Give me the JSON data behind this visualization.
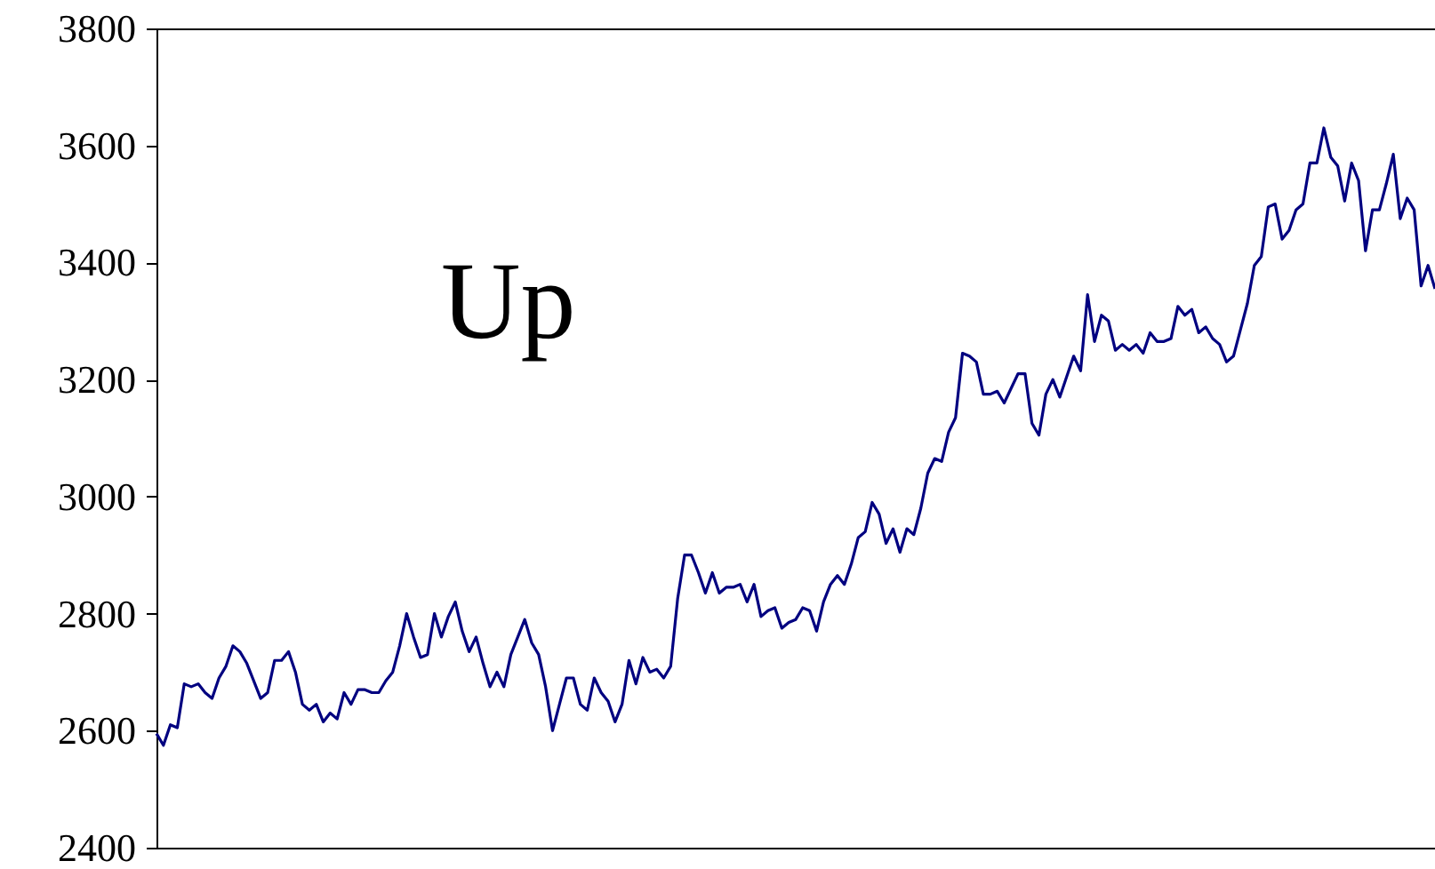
{
  "chart_data": {
    "type": "line",
    "annotations": [
      "Up"
    ],
    "color": "#000080",
    "ylim": [
      2400,
      3800
    ],
    "yticks": [
      2400,
      2600,
      2800,
      3000,
      3200,
      3400,
      3600,
      3800
    ],
    "grid": false,
    "marker": "none",
    "line_style": "solid",
    "categories": [
      null,
      null,
      null,
      null,
      null,
      null,
      null,
      null,
      null,
      null,
      null,
      null,
      null,
      null,
      null,
      null,
      null,
      null,
      null,
      null,
      null,
      null,
      null,
      null,
      null,
      null,
      null,
      null,
      null,
      null,
      null,
      null,
      null,
      null,
      null,
      null,
      null,
      null,
      null,
      null,
      null,
      null,
      null,
      null,
      null,
      null,
      null,
      null,
      null,
      null,
      null,
      null,
      null,
      null,
      null,
      null,
      null,
      null,
      null,
      null,
      null,
      null,
      null,
      null,
      null,
      null,
      null,
      null,
      null,
      null,
      null,
      null,
      null,
      null,
      null,
      null,
      null,
      null,
      null,
      null,
      null,
      null,
      null,
      null,
      null,
      null,
      null,
      null,
      null,
      null,
      null,
      null,
      null,
      null,
      null,
      null,
      null,
      null,
      null,
      null,
      null,
      null,
      null,
      null,
      null,
      null,
      null,
      null,
      null,
      null,
      null,
      null,
      null,
      null,
      null,
      null,
      null,
      null,
      null,
      null,
      null,
      null,
      null,
      null,
      null,
      null,
      null,
      null,
      null,
      null,
      null,
      null,
      null,
      null,
      null,
      null,
      null,
      null,
      null,
      null,
      null,
      null,
      null,
      null,
      null,
      null,
      null,
      null,
      null,
      null,
      null,
      null,
      null,
      null,
      null,
      null,
      null,
      null,
      null,
      null,
      null,
      null,
      null,
      null,
      null,
      null,
      null,
      null,
      null,
      null,
      null,
      null,
      null,
      null,
      null,
      null,
      null,
      null,
      null,
      null,
      null,
      null,
      null,
      null,
      null
    ],
    "values": [
      2595,
      2575,
      2610,
      2605,
      2680,
      2675,
      2680,
      2665,
      2655,
      2690,
      2710,
      2745,
      2735,
      2715,
      2685,
      2655,
      2665,
      2720,
      2720,
      2735,
      2700,
      2645,
      2635,
      2645,
      2615,
      2630,
      2620,
      2665,
      2645,
      2670,
      2670,
      2665,
      2665,
      2685,
      2700,
      2745,
      2800,
      2760,
      2725,
      2730,
      2800,
      2760,
      2795,
      2820,
      2770,
      2735,
      2760,
      2715,
      2675,
      2700,
      2675,
      2730,
      2760,
      2790,
      2750,
      2730,
      2675,
      2600,
      2645,
      2690,
      2690,
      2645,
      2635,
      2690,
      2665,
      2650,
      2615,
      2645,
      2720,
      2680,
      2725,
      2700,
      2705,
      2690,
      2710,
      2825,
      2900,
      2900,
      2870,
      2835,
      2870,
      2835,
      2845,
      2845,
      2850,
      2820,
      2850,
      2795,
      2805,
      2810,
      2775,
      2785,
      2790,
      2810,
      2805,
      2770,
      2820,
      2850,
      2865,
      2850,
      2885,
      2930,
      2940,
      2990,
      2970,
      2920,
      2945,
      2905,
      2945,
      2935,
      2980,
      3040,
      3065,
      3060,
      3110,
      3135,
      3245,
      3240,
      3230,
      3175,
      3175,
      3180,
      3160,
      3185,
      3210,
      3210,
      3125,
      3105,
      3175,
      3200,
      3170,
      3205,
      3240,
      3215,
      3345,
      3265,
      3310,
      3300,
      3250,
      3260,
      3250,
      3260,
      3245,
      3280,
      3265,
      3265,
      3270,
      3325,
      3310,
      3320,
      3280,
      3290,
      3270,
      3260,
      3230,
      3240,
      3285,
      3330,
      3395,
      3410,
      3495,
      3500,
      3440,
      3455,
      3490,
      3500,
      3570,
      3570,
      3630,
      3580,
      3565,
      3505,
      3570,
      3540,
      3420,
      3490,
      3490,
      3535,
      3585,
      3475,
      3510,
      3490,
      3360,
      3395,
      3355
    ]
  }
}
